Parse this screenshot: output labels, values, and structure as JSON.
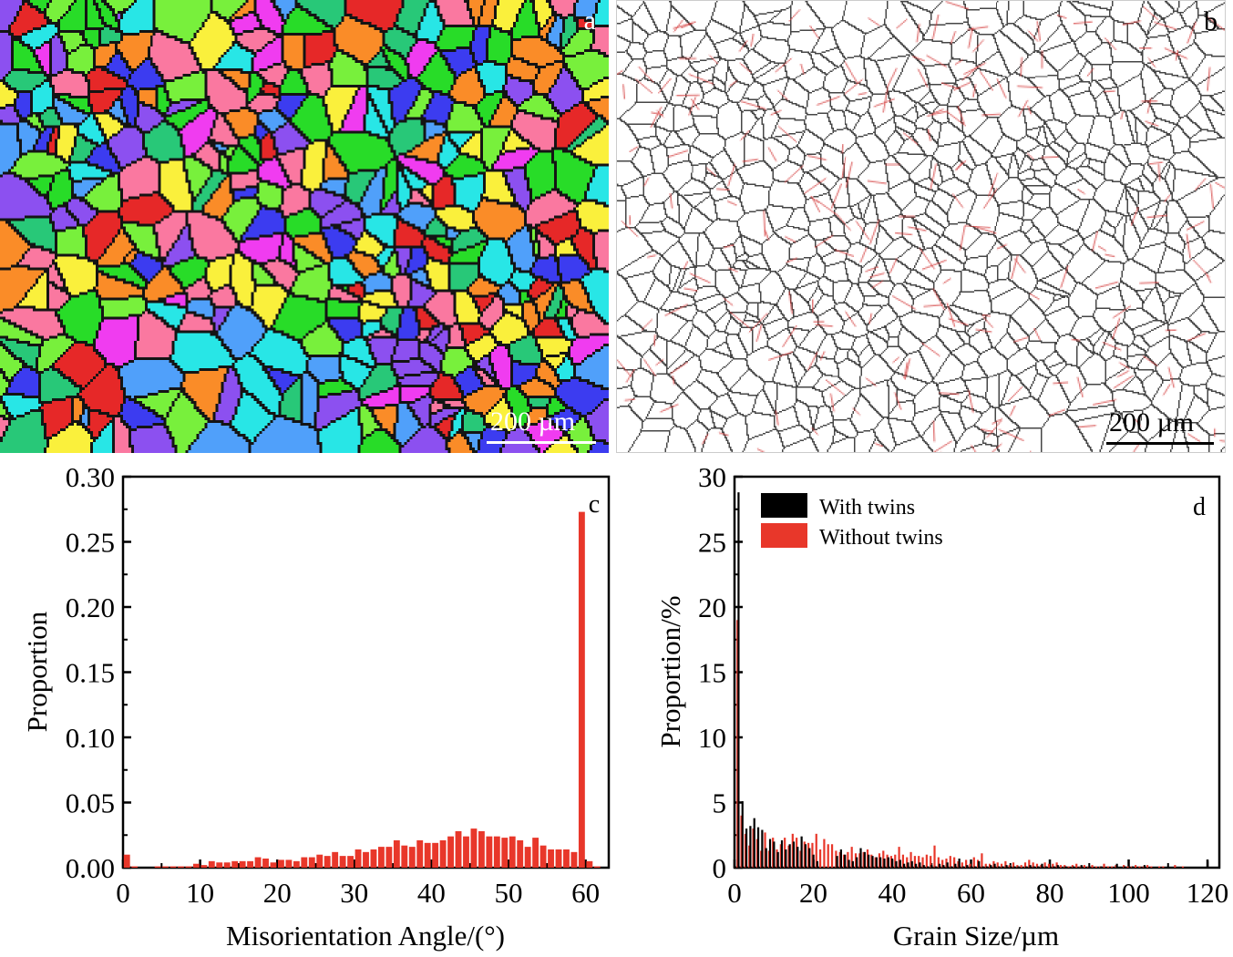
{
  "panels": {
    "a": {
      "label": "a",
      "scale_label": "200 µm"
    },
    "b": {
      "label": "b",
      "scale_label": "200 µm"
    }
  },
  "colors": {
    "red": "#e8372a",
    "black": "#000000",
    "twin_boundary": "#d23a3a"
  },
  "chart_data": [
    {
      "type": "bar",
      "panel": "c",
      "xlabel": "Misorientation Angle/(°)",
      "ylabel": "Proportion",
      "xlim": [
        0,
        63
      ],
      "ylim": [
        0,
        0.3
      ],
      "xticks": [
        "0",
        "10",
        "20",
        "30",
        "40",
        "50",
        "60"
      ],
      "yticks": [
        "0.00",
        "0.05",
        "0.10",
        "0.15",
        "0.20",
        "0.25",
        "0.30"
      ],
      "x": [
        1,
        2,
        3,
        4,
        5,
        6,
        7,
        8,
        9,
        10,
        11,
        12,
        13,
        14,
        15,
        16,
        17,
        18,
        19,
        20,
        21,
        22,
        23,
        24,
        25,
        26,
        27,
        28,
        29,
        30,
        31,
        32,
        33,
        34,
        35,
        36,
        37,
        38,
        39,
        40,
        41,
        42,
        43,
        44,
        45,
        46,
        47,
        48,
        49,
        50,
        51,
        52,
        53,
        54,
        55,
        56,
        57,
        58,
        59,
        60,
        61,
        62
      ],
      "values": [
        0.01,
        0.001,
        0,
        0,
        0.001,
        0.001,
        0.001,
        0.001,
        0.001,
        0.003,
        0.002,
        0.005,
        0.004,
        0.004,
        0.005,
        0.005,
        0.005,
        0.008,
        0.007,
        0.004,
        0.006,
        0.006,
        0.005,
        0.008,
        0.008,
        0.01,
        0.009,
        0.012,
        0.009,
        0.009,
        0.014,
        0.012,
        0.014,
        0.016,
        0.016,
        0.021,
        0.017,
        0.016,
        0.021,
        0.019,
        0.019,
        0.021,
        0.024,
        0.028,
        0.024,
        0.03,
        0.028,
        0.024,
        0.024,
        0.023,
        0.024,
        0.021,
        0.016,
        0.023,
        0.017,
        0.014,
        0.014,
        0.014,
        0.012,
        0.273,
        0.005,
        0.001
      ],
      "color": "#e8372a"
    },
    {
      "type": "bar",
      "panel": "d",
      "xlabel": "Grain Size/µm",
      "ylabel": "Proportion/%",
      "xlim": [
        0,
        123
      ],
      "ylim": [
        0,
        30
      ],
      "xticks": [
        "0",
        "20",
        "40",
        "60",
        "80",
        "100",
        "120"
      ],
      "yticks": [
        "0",
        "5",
        "10",
        "15",
        "20",
        "25",
        "30"
      ],
      "legend": {
        "position": "top-left",
        "entries": [
          "With twins",
          "Without twins"
        ]
      },
      "series": [
        {
          "name": "With twins",
          "color": "#000000",
          "values": [
            28.8,
            5.1,
            3.0,
            3.2,
            3.8,
            3.1,
            2.9,
            1.5,
            2.2,
            2.0,
            1.2,
            2.1,
            1.4,
            1.8,
            2.0,
            1.6,
            2.4,
            1.8,
            1.5,
            1.0,
            0.5,
            0,
            0,
            0,
            0,
            0.9,
            1.4,
            1.0,
            0.6,
            0.5,
            0.8,
            1.5,
            1.2,
            1.0,
            0.9,
            0.8,
            0.8,
            0.7,
            0.8,
            0.7,
            0.5,
            0.6,
            0.3,
            0.4,
            0.5,
            0.3,
            0.4,
            0.2,
            0.1,
            0.2,
            0.1,
            0.3,
            0.2,
            0.4,
            0.1,
            0.3,
            0.7,
            0.1,
            0.2,
            0.1,
            0.1,
            0.5,
            0.1,
            0.1,
            0.2,
            0.3,
            0.1,
            0.1,
            0.2,
            0.1,
            0.1,
            0.1,
            0,
            0.1,
            0.2,
            0.1,
            0.1,
            0.3,
            0.1,
            0,
            0.1,
            0.2,
            0,
            0.1,
            0,
            0.1,
            0,
            0.2,
            0,
            0.1,
            0,
            0,
            0.1,
            0,
            0,
            0,
            0.3,
            0,
            0.1,
            0,
            0.1,
            0,
            0,
            0.2,
            0,
            0,
            0,
            0,
            0,
            0,
            0,
            0,
            0,
            0,
            0,
            0,
            0,
            0,
            0,
            0.5
          ]
        },
        {
          "name": "Without twins",
          "color": "#e8372a",
          "values": [
            19.0,
            4.0,
            2.6,
            1.7,
            3.0,
            2.2,
            1.3,
            2.7,
            1.3,
            2.3,
            1.4,
            1.8,
            2.3,
            1.7,
            2.6,
            2.3,
            1.3,
            2.0,
            1.9,
            1.9,
            2.6,
            1.4,
            2.2,
            1.8,
            1.8,
            1.3,
            1.2,
            1.0,
            1.2,
            1.6,
            1.1,
            1.1,
            1.2,
            1.4,
            1.0,
            0.8,
            1.1,
            1.3,
            1.0,
            0.9,
            1.0,
            1.6,
            1.0,
            0.8,
            1.2,
            0.9,
            0.9,
            0.8,
            1.0,
            0.9,
            1.7,
            0.8,
            0.6,
            0.7,
            0.9,
            0.8,
            0.5,
            0.4,
            0.6,
            0.3,
            0.8,
            0.6,
            1.1,
            0.3,
            0.3,
            0.5,
            0.4,
            0.3,
            0.5,
            0.2,
            0.4,
            0.2,
            0.2,
            0.4,
            0.6,
            0.4,
            0.3,
            0.2,
            0.4,
            0.3,
            0.3,
            0.4,
            0.2,
            0.2,
            0.1,
            0.2,
            0.3,
            0.1,
            0.2,
            0.1,
            0.2,
            0.1,
            0.1,
            0.3,
            0.1,
            0.1,
            0.2,
            0,
            0.2,
            0.1,
            0.1,
            0.2,
            0.1,
            0.1,
            0.2,
            0.1,
            0,
            0.1,
            0.1,
            0,
            0,
            0.2,
            0,
            0.1,
            0,
            0,
            0,
            0,
            0,
            0
          ]
        }
      ]
    }
  ],
  "chart_labels": {
    "c": "c",
    "d": "d"
  }
}
